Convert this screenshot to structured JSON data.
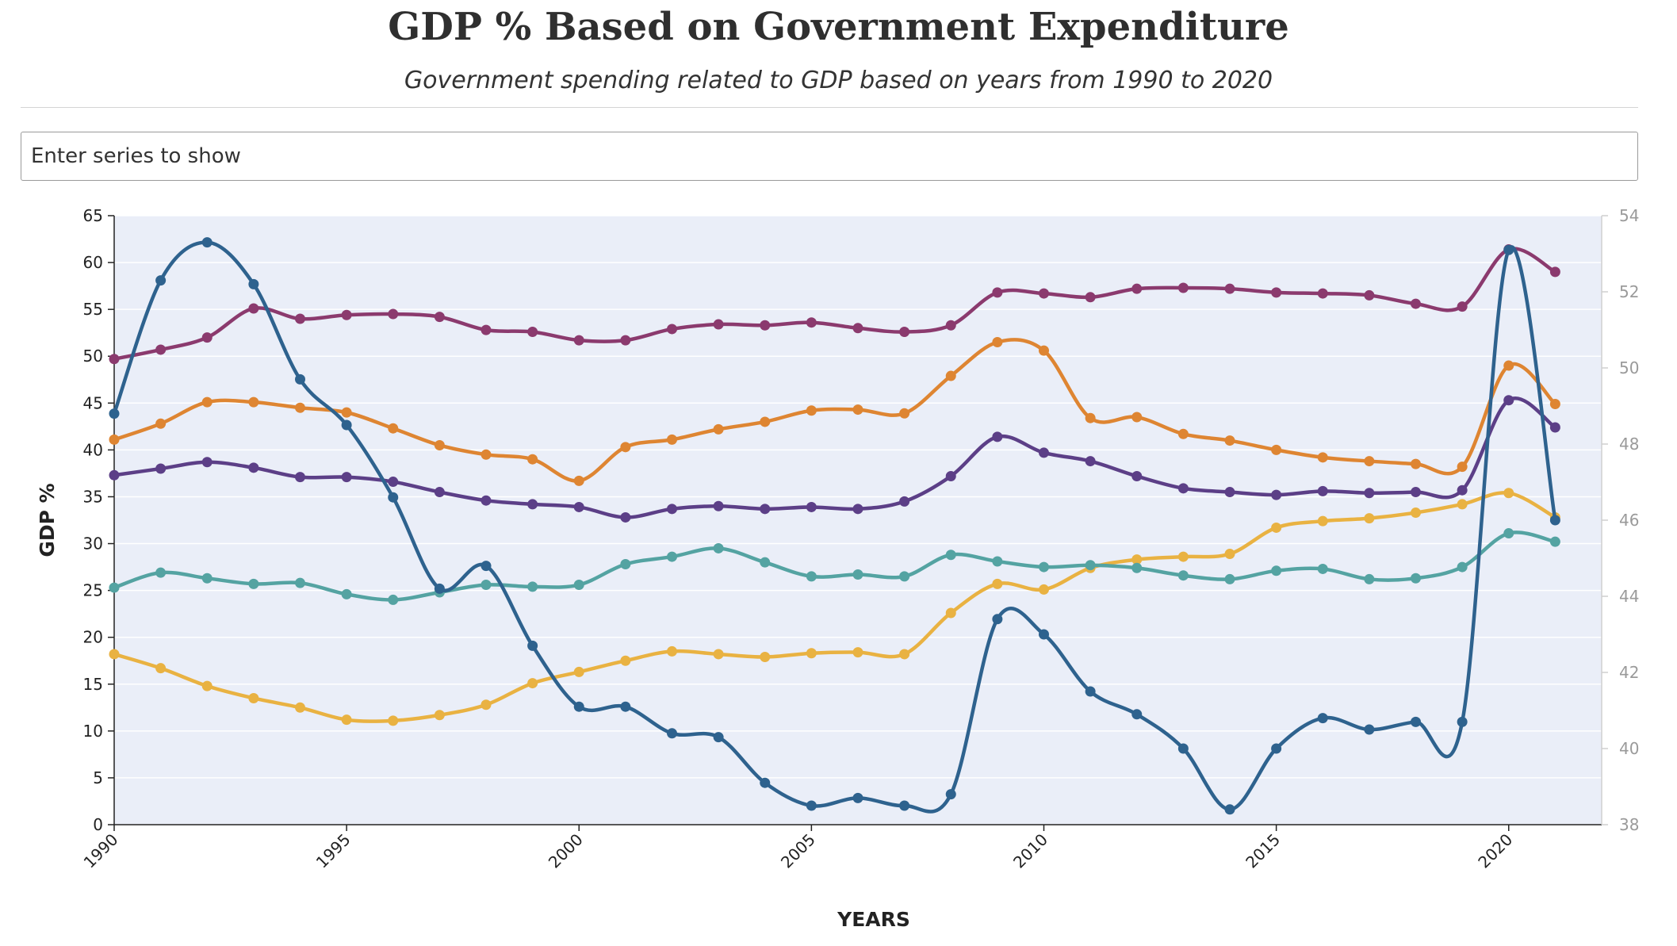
{
  "header": {
    "title": "GDP % Based on Government Expenditure",
    "subtitle": "Government spending related to GDP based on years from 1990 to 2020"
  },
  "search": {
    "placeholder": "Enter series to show"
  },
  "chart_data": {
    "type": "line",
    "title": "GDP % Based on Government Expenditure",
    "subtitle": "Government spending related to GDP based on years from 1990 to 2020",
    "xlabel": "YEARS",
    "ylabel": "GDP %",
    "xlim": [
      1990,
      2022
    ],
    "ylim": [
      0,
      65
    ],
    "y2lim": [
      38,
      54
    ],
    "x_ticks": [
      1990,
      1995,
      2000,
      2005,
      2010,
      2015,
      2020
    ],
    "y_ticks": [
      0,
      5,
      10,
      15,
      20,
      25,
      30,
      35,
      40,
      45,
      50,
      55,
      60,
      65
    ],
    "y2_ticks": [
      38,
      40,
      42,
      44,
      46,
      48,
      50,
      52,
      54
    ],
    "grid": "horizontal",
    "background": "#eaeef8",
    "x": [
      1990,
      1991,
      1992,
      1993,
      1994,
      1995,
      1996,
      1997,
      1998,
      1999,
      2000,
      2001,
      2002,
      2003,
      2004,
      2005,
      2006,
      2007,
      2008,
      2009,
      2010,
      2011,
      2012,
      2013,
      2014,
      2015,
      2016,
      2017,
      2018,
      2019,
      2020,
      2021
    ],
    "series": [
      {
        "color": "#8b3a6e",
        "axis": "left",
        "values": [
          49.7,
          50.7,
          52.0,
          55.1,
          54.0,
          54.4,
          54.5,
          54.2,
          52.8,
          52.6,
          51.7,
          51.7,
          52.9,
          53.4,
          53.3,
          53.6,
          53.0,
          52.6,
          53.3,
          56.8,
          56.7,
          56.3,
          57.2,
          57.3,
          57.2,
          56.8,
          56.7,
          56.5,
          55.6,
          55.3,
          61.4,
          59.0
        ]
      },
      {
        "color": "#de8532",
        "axis": "left",
        "values": [
          41.1,
          42.8,
          45.1,
          45.1,
          44.5,
          44.0,
          42.3,
          40.5,
          39.5,
          39.0,
          36.7,
          40.3,
          41.1,
          42.2,
          43.0,
          44.2,
          44.3,
          43.9,
          47.9,
          51.5,
          50.6,
          43.4,
          43.5,
          41.7,
          41.0,
          40.0,
          39.2,
          38.8,
          38.5,
          38.2,
          49.0,
          44.9
        ]
      },
      {
        "color": "#5c3f87",
        "axis": "left",
        "values": [
          37.3,
          38.0,
          38.7,
          38.1,
          37.1,
          37.1,
          36.6,
          35.5,
          34.6,
          34.2,
          33.9,
          32.8,
          33.7,
          34.0,
          33.7,
          33.9,
          33.7,
          34.5,
          37.2,
          41.4,
          39.7,
          38.8,
          37.2,
          35.9,
          35.5,
          35.2,
          35.6,
          35.4,
          35.5,
          35.7,
          45.3,
          42.4
        ]
      },
      {
        "color": "#e9b242",
        "axis": "left",
        "values": [
          18.2,
          16.7,
          14.8,
          13.5,
          12.5,
          11.2,
          11.1,
          11.7,
          12.8,
          15.1,
          16.3,
          17.5,
          18.5,
          18.2,
          17.9,
          18.3,
          18.4,
          18.2,
          22.6,
          25.7,
          25.1,
          27.4,
          28.3,
          28.6,
          28.9,
          31.7,
          32.4,
          32.7,
          33.3,
          34.2,
          35.4,
          32.8
        ]
      },
      {
        "color": "#54a3a2",
        "axis": "left",
        "values": [
          25.3,
          26.9,
          26.3,
          25.7,
          25.8,
          24.6,
          24.0,
          24.8,
          25.6,
          25.4,
          25.6,
          27.8,
          28.6,
          29.5,
          28.0,
          26.5,
          26.7,
          26.5,
          28.8,
          28.1,
          27.5,
          27.7,
          27.4,
          26.6,
          26.2,
          27.1,
          27.3,
          26.2,
          26.3,
          27.5,
          31.1,
          30.2
        ]
      },
      {
        "color": "#2e628e",
        "axis": "right",
        "values": [
          48.8,
          52.3,
          53.3,
          52.2,
          49.7,
          48.5,
          46.6,
          44.2,
          44.8,
          42.7,
          41.1,
          41.1,
          40.4,
          40.3,
          39.1,
          38.5,
          38.7,
          38.5,
          38.8,
          43.4,
          43.0,
          41.5,
          40.9,
          40.0,
          38.4,
          40.0,
          40.8,
          40.5,
          40.7,
          40.7,
          53.1,
          46.0
        ]
      }
    ]
  }
}
